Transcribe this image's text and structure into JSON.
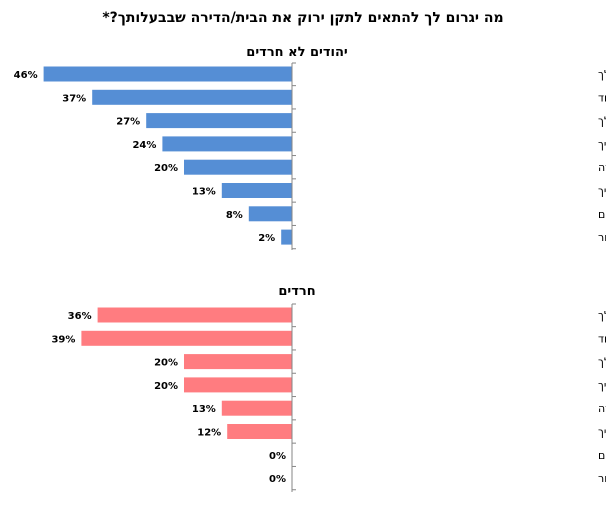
{
  "page_title": "מה יגרום לך להתאים לתקן ירוק את הבית/הדירה שבבעלותך?*",
  "chart_data": [
    {
      "type": "bar",
      "orientation": "horizontal",
      "title": "יהודים לא חרדים",
      "color": "#558ED5",
      "value_suffix": "%",
      "categories": [
        "סיוע כספי/השתתפות במימון המהלך",
        "פתיחת מסלול התחדשות עירונית לשדרוג כל הבניין יחד",
        "הבנת היתרונות עבורי מהמהלך",
        "סיוע לוגיסטי בתהליך",
        "השפעה חיובית על ערך הדירה בעת מכירה/השכרה",
        "תקנות שיקלו על קידום התהליך",
        "אף אחד מהם",
        "אחר"
      ],
      "values": [
        46,
        37,
        27,
        24,
        20,
        13,
        8,
        2
      ]
    },
    {
      "type": "bar",
      "orientation": "horizontal",
      "title": "חרדים",
      "color": "#FF7C80",
      "value_suffix": "%",
      "categories": [
        "סיוע כספי/השתתפות במימון המהלך",
        "פתיחת מסלול התחדשות עירונית לשדרוג כל הבניין יחד",
        "הבנת היתרונות עבורי מהמהלך",
        "סיוע לוגיסטי בתהליך",
        "השפעה חיובית על ערך הדירה בעת מכירה/השכרה",
        "תקנות שיקלו על קידום התהליך",
        "אף אחד מהם",
        "אחר"
      ],
      "values": [
        36,
        39,
        20,
        20,
        13,
        12,
        0,
        0
      ]
    }
  ]
}
